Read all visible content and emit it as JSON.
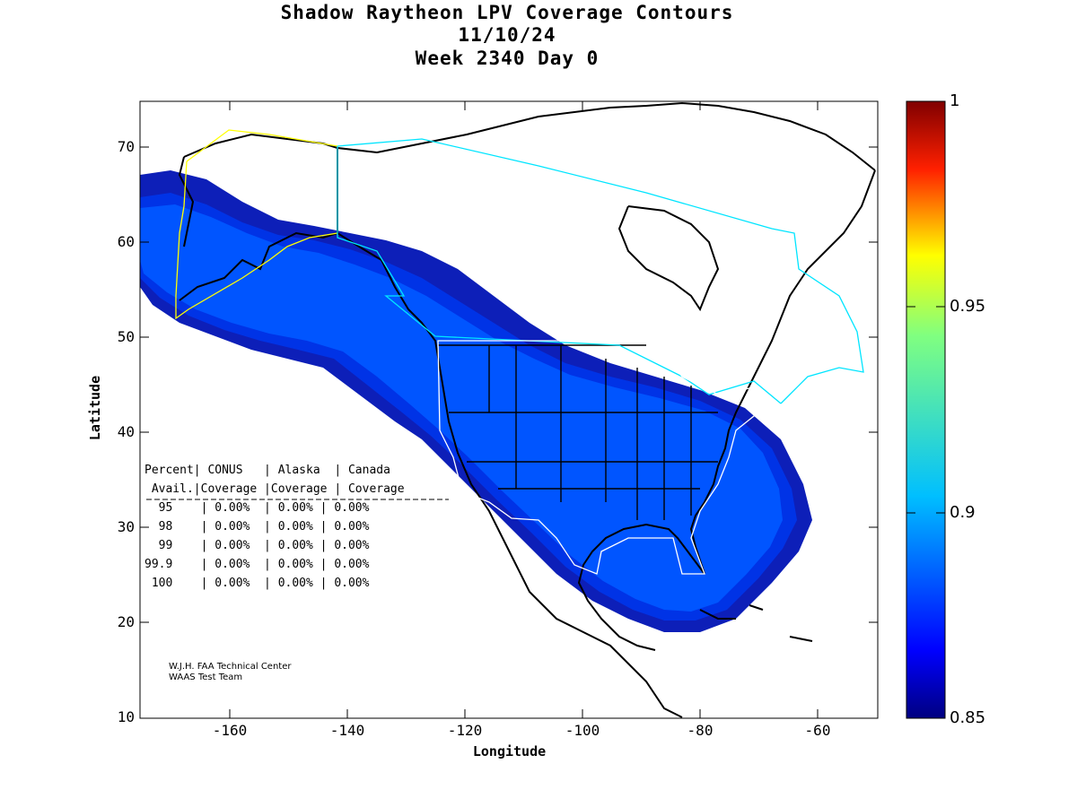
{
  "title": {
    "line1": "Shadow Raytheon LPV Coverage Contours",
    "line2": "11/10/24",
    "line3": "Week 2340 Day 0"
  },
  "axes": {
    "xlabel": "Longitude",
    "ylabel": "Latitude",
    "xticks": [
      "-160",
      "-140",
      "-120",
      "-100",
      "-80",
      "-60"
    ],
    "yticks": [
      "70",
      "60",
      "50",
      "40",
      "30",
      "20",
      "10"
    ],
    "xlim": [
      -175,
      -50
    ],
    "ylim": [
      10,
      75
    ]
  },
  "colorbar": {
    "ticks": [
      "1",
      "0.95",
      "0.9",
      "0.85"
    ],
    "range": [
      0.85,
      1.0
    ]
  },
  "stats_table": {
    "header1": "Percent| CONUS   | Alaska  | Canada",
    "header2": " Avail.|Coverage |Coverage | Coverage",
    "rows": [
      "  95    | 0.00%  | 0.00% | 0.00%",
      "  98    | 0.00%  | 0.00% | 0.00%",
      "  99    | 0.00%  | 0.00% | 0.00%",
      "99.9    | 0.00%  | 0.00% | 0.00%",
      " 100    | 0.00%  | 0.00% | 0.00%"
    ]
  },
  "credits": {
    "line1": "W.J.H. FAA Technical Center",
    "line2": "WAAS Test Team"
  },
  "colors": {
    "band_outer": "#0d1fb8",
    "band_mid": "#0033e6",
    "band_inner": "#0055ff",
    "coast": "#000000",
    "alaska_boundary": "#ffff00",
    "canada_boundary": "#00e5ff",
    "conus_boundary": "#ffffff"
  }
}
